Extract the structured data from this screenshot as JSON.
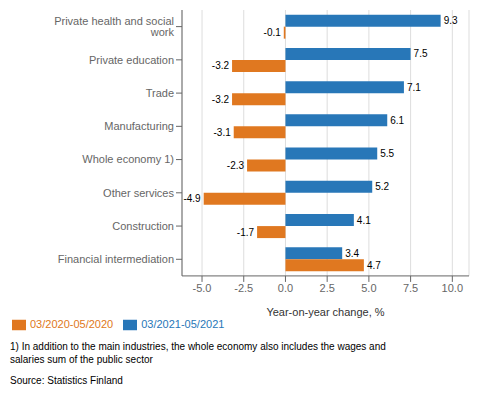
{
  "chart_data": {
    "type": "bar",
    "orientation": "horizontal",
    "categories": [
      "Financial intermediation",
      "Construction",
      "Other services",
      "Whole economy 1)",
      "Manufacturing",
      "Trade",
      "Private education",
      "Private health and social work"
    ],
    "series": [
      {
        "name": "03/2021-05/2021",
        "color": "#2877B8",
        "values": [
          3.4,
          4.1,
          5.2,
          5.5,
          6.1,
          7.1,
          7.5,
          9.3
        ]
      },
      {
        "name": "03/2020-05/2020",
        "color": "#E07820",
        "values": [
          4.7,
          -1.7,
          -4.9,
          -2.3,
          -3.1,
          -3.2,
          -3.2,
          -0.1
        ]
      }
    ],
    "xlabel": "Year-on-year change, %",
    "xlim": [
      -6.2,
      11.0
    ],
    "xticks": [
      {
        "value": -5.0,
        "label": "-5.0"
      },
      -2.5,
      {
        "value": 0.0,
        "label": "0.0"
      },
      2.5,
      {
        "value": 5.0,
        "label": "5.0"
      },
      7.5,
      {
        "value": 10.0,
        "label": "10.0"
      }
    ],
    "grid": true,
    "legend": "lower left",
    "data_labels": true,
    "annotations": [
      "1) In addition to the main industries, the whole economy also includes the wages and\nsalaries sum of the public sector",
      "Source: Statistics Finland"
    ]
  }
}
